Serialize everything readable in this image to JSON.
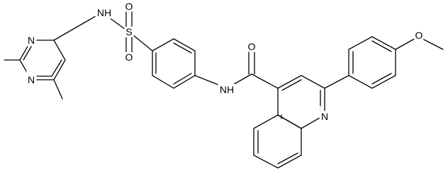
{
  "atoms": [
    {
      "label": "NH"
    },
    {
      "label": "S"
    },
    {
      "label": "O"
    },
    {
      "label": "O"
    },
    {
      "label": "N"
    },
    {
      "label": "N"
    },
    {
      "label": "NH"
    },
    {
      "label": "O"
    },
    {
      "label": "N"
    },
    {
      "label": "O"
    }
  ]
}
